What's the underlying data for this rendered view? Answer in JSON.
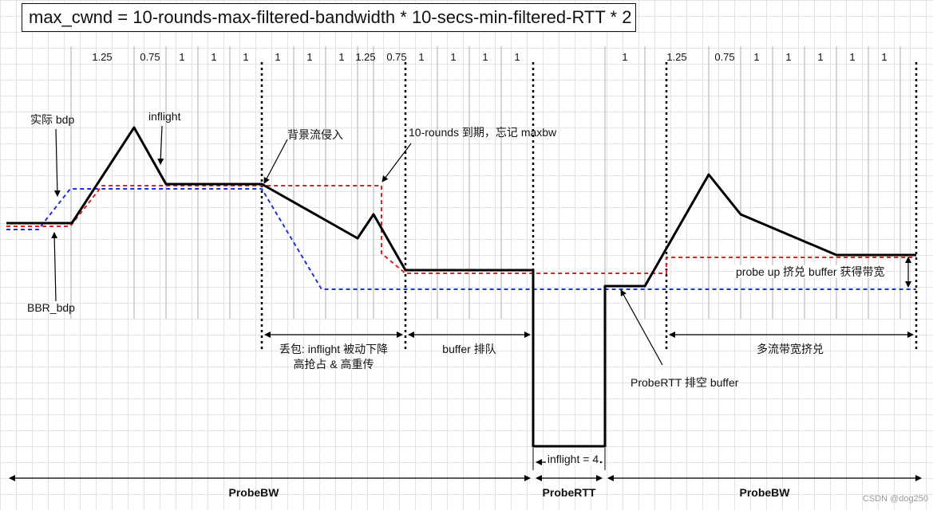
{
  "formula": "max_cwnd = 10-rounds-max-filtered-bandwidth * 10-secs-min-filtered-RTT * 2",
  "pacing_gains": [
    "1.25",
    "0.75",
    "1",
    "1",
    "1",
    "1",
    "1",
    "1",
    "1.25",
    "0.75",
    "1",
    "1",
    "1",
    "1",
    "1",
    "1.25",
    "0.75",
    "1",
    "1",
    "1",
    "1",
    "1"
  ],
  "labels": {
    "actual_bdp": "实际 bdp",
    "inflight": "inflight",
    "bbr_bdp": "BBR_bdp",
    "bg_flow": "背景流侵入",
    "rounds_expire": "10-rounds 到期，忘记 maxbw",
    "probe_up": "probe up 挤兑 buffer 获得带宽",
    "probe_rtt_drain": "ProbeRTT 排空 buffer",
    "inflight_4": "inflight = 4"
  },
  "spans": {
    "loss_line1": "丢包: inflight 被动下降",
    "loss_line2": "高抢占 & 高重传",
    "buffer_queue": "buffer 排队",
    "multi_flow": "多流带宽挤兑"
  },
  "phases": [
    "ProbeBW",
    "ProbeRTT",
    "ProbeBW"
  ],
  "watermark": "CSDN @dog250",
  "colors": {
    "inflight": "#000000",
    "actual_bdp": "#e02020",
    "bbr_bdp": "#2030e0",
    "grid": "#e4e4e4"
  }
}
